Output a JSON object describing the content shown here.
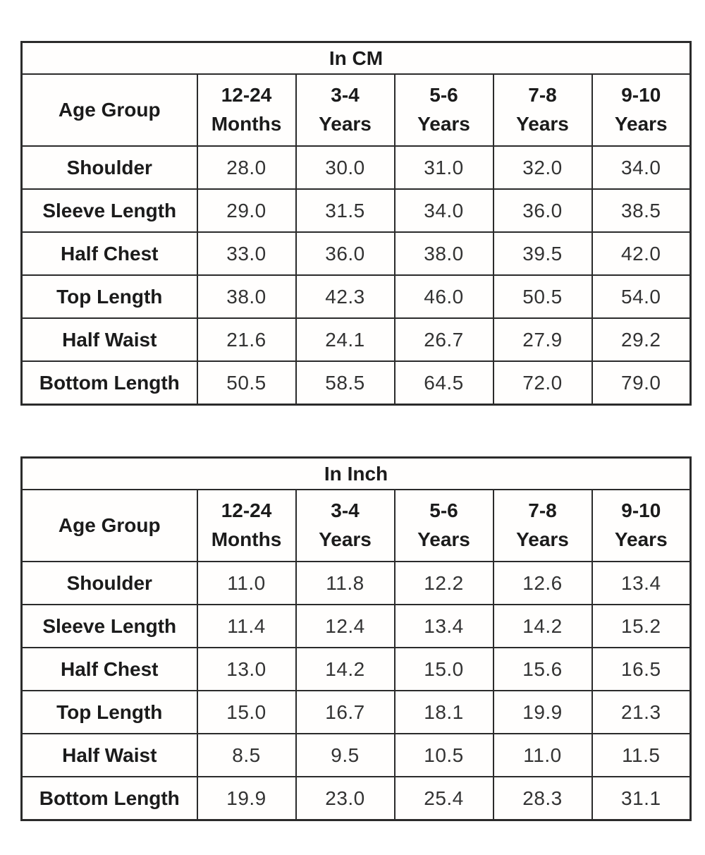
{
  "colors": {
    "background": "#ffffff",
    "border": "#2b2b2b",
    "label_text": "#1b1b1b",
    "value_text": "#333333"
  },
  "chart_data": [
    {
      "type": "table",
      "title": "In CM",
      "corner_label": "Age Group",
      "columns": [
        {
          "line1": "12-24",
          "line2": "Months"
        },
        {
          "line1": "3-4",
          "line2": "Years"
        },
        {
          "line1": "5-6",
          "line2": "Years"
        },
        {
          "line1": "7-8",
          "line2": "Years"
        },
        {
          "line1": "9-10",
          "line2": "Years"
        }
      ],
      "rows": [
        {
          "label": "Shoulder",
          "values": [
            "28.0",
            "30.0",
            "31.0",
            "32.0",
            "34.0"
          ]
        },
        {
          "label": "Sleeve Length",
          "values": [
            "29.0",
            "31.5",
            "34.0",
            "36.0",
            "38.5"
          ]
        },
        {
          "label": "Half Chest",
          "values": [
            "33.0",
            "36.0",
            "38.0",
            "39.5",
            "42.0"
          ]
        },
        {
          "label": "Top Length",
          "values": [
            "38.0",
            "42.3",
            "46.0",
            "50.5",
            "54.0"
          ]
        },
        {
          "label": "Half Waist",
          "values": [
            "21.6",
            "24.1",
            "26.7",
            "27.9",
            "29.2"
          ]
        },
        {
          "label": "Bottom Length",
          "values": [
            "50.5",
            "58.5",
            "64.5",
            "72.0",
            "79.0"
          ]
        }
      ]
    },
    {
      "type": "table",
      "title": "In Inch",
      "corner_label": "Age Group",
      "columns": [
        {
          "line1": "12-24",
          "line2": "Months"
        },
        {
          "line1": "3-4",
          "line2": "Years"
        },
        {
          "line1": "5-6",
          "line2": "Years"
        },
        {
          "line1": "7-8",
          "line2": "Years"
        },
        {
          "line1": "9-10",
          "line2": "Years"
        }
      ],
      "rows": [
        {
          "label": "Shoulder",
          "values": [
            "11.0",
            "11.8",
            "12.2",
            "12.6",
            "13.4"
          ]
        },
        {
          "label": "Sleeve Length",
          "values": [
            "11.4",
            "12.4",
            "13.4",
            "14.2",
            "15.2"
          ]
        },
        {
          "label": "Half Chest",
          "values": [
            "13.0",
            "14.2",
            "15.0",
            "15.6",
            "16.5"
          ]
        },
        {
          "label": "Top Length",
          "values": [
            "15.0",
            "16.7",
            "18.1",
            "19.9",
            "21.3"
          ]
        },
        {
          "label": "Half Waist",
          "values": [
            "8.5",
            "9.5",
            "10.5",
            "11.0",
            "11.5"
          ]
        },
        {
          "label": "Bottom Length",
          "values": [
            "19.9",
            "23.0",
            "25.4",
            "28.3",
            "31.1"
          ]
        }
      ]
    }
  ]
}
